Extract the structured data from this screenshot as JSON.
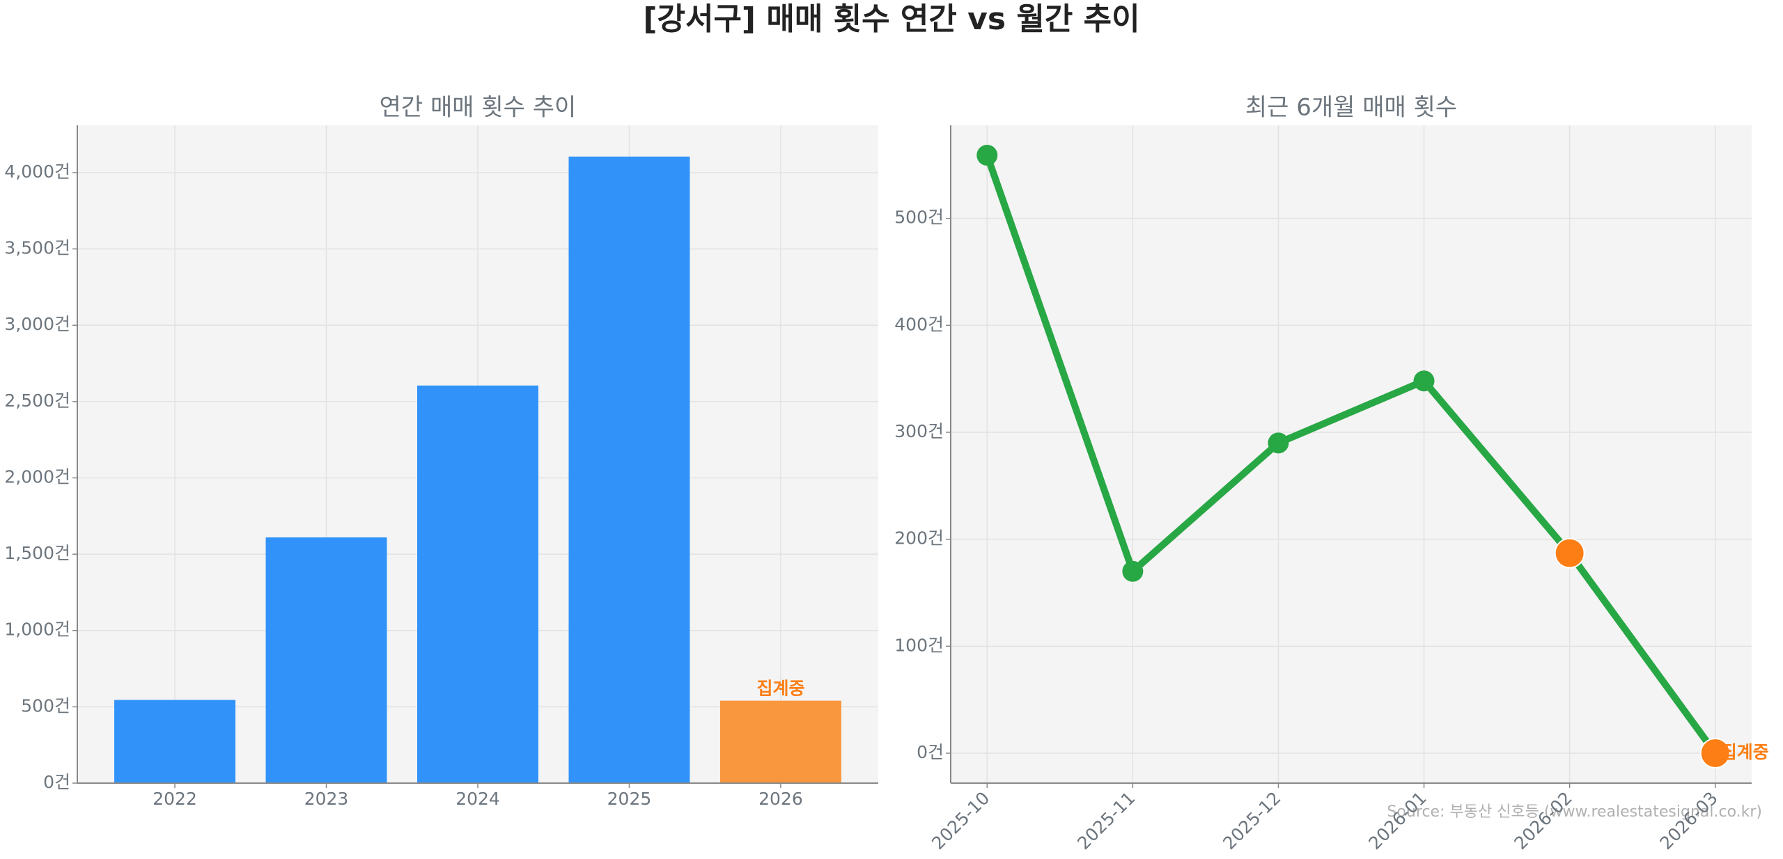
{
  "title": "[강서구] 매매 횟수 연간 vs 월간 추이",
  "source": "Source: 부동산 신호등 (www.realestatesignal.co.kr)",
  "chart_data": [
    {
      "type": "bar",
      "title": "연간 매매 횟수 추이",
      "categories": [
        "2022",
        "2023",
        "2024",
        "2025",
        "2026"
      ],
      "values": [
        545,
        1610,
        2605,
        4105,
        540
      ],
      "colors": [
        "#3193fa",
        "#3193fa",
        "#3193fa",
        "#3193fa",
        "#f9973e"
      ],
      "annotations": [
        {
          "category": "2026",
          "text": "집계중",
          "color": "#fd7e14"
        }
      ],
      "ylim": [
        0,
        4310
      ],
      "yticks": [
        {
          "value": 0,
          "label": "0건"
        },
        {
          "value": 500,
          "label": "500건"
        },
        {
          "value": 1000,
          "label": "1,000건"
        },
        {
          "value": 1500,
          "label": "1,500건"
        },
        {
          "value": 2000,
          "label": "2,000건"
        },
        {
          "value": 2500,
          "label": "2,500건"
        },
        {
          "value": 3000,
          "label": "3,000건"
        },
        {
          "value": 3500,
          "label": "3,500건"
        },
        {
          "value": 4000,
          "label": "4,000건"
        }
      ],
      "grid": true
    },
    {
      "type": "line",
      "title": "최근 6개월 매매 횟수",
      "categories": [
        "2025-10",
        "2025-11",
        "2025-12",
        "2026-01",
        "2026-02",
        "2026-03"
      ],
      "values": [
        559,
        170,
        290,
        348,
        187,
        0
      ],
      "color": "#28a745",
      "marker_colors": [
        "#28a745",
        "#28a745",
        "#28a745",
        "#28a745",
        "#fd7e14",
        "#fd7e14"
      ],
      "annotations": [
        {
          "category": "2026-03",
          "text": "집계중",
          "color": "#fd7e14"
        }
      ],
      "ylim": [
        -28,
        587
      ],
      "yticks": [
        {
          "value": 0,
          "label": "0건"
        },
        {
          "value": 100,
          "label": "100건"
        },
        {
          "value": 200,
          "label": "200건"
        },
        {
          "value": 300,
          "label": "300건"
        },
        {
          "value": 400,
          "label": "400건"
        },
        {
          "value": 500,
          "label": "500건"
        }
      ],
      "grid": true
    }
  ]
}
